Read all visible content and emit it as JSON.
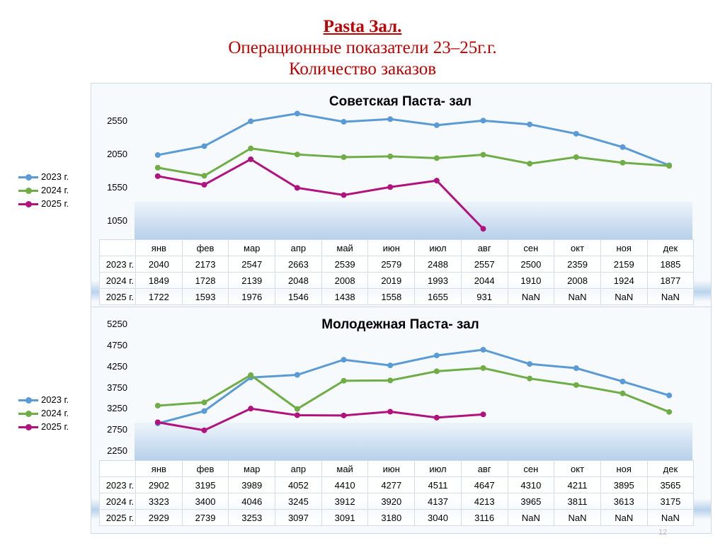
{
  "header": {
    "title": "Pasta Зал.",
    "subtitle": "Операционные показатели  23–25г.г.",
    "metric": "Количество заказов"
  },
  "page_number": "12",
  "colors": {
    "2023 г.": "#5b9bd5",
    "2024 г.": "#70ad47",
    "2025 г.": "#b0127e"
  },
  "chart_data": [
    {
      "type": "line",
      "title": "Советская Паста- зал",
      "categories": [
        "янв",
        "фев",
        "мар",
        "апр",
        "май",
        "июн",
        "июл",
        "авг",
        "сен",
        "окт",
        "ноя",
        "дек"
      ],
      "y_ticks": [
        "2550",
        "2050",
        "1550",
        "1050"
      ],
      "legend": "left",
      "ylim": [
        780,
        2780
      ],
      "series": [
        {
          "name": "2023 г.",
          "values": [
            2040,
            2173,
            2547,
            2663,
            2539,
            2579,
            2488,
            2557,
            2500,
            2359,
            2159,
            1885
          ],
          "labels": [
            "2040",
            "2173",
            "2547",
            "2663",
            "2539",
            "2579",
            "2488",
            "2557",
            "2500",
            "2359",
            "2159",
            "1885"
          ]
        },
        {
          "name": "2024 г.",
          "values": [
            1849,
            1728,
            2139,
            2048,
            2008,
            2019,
            1993,
            2044,
            1910,
            2008,
            1924,
            1877
          ],
          "labels": [
            "1849",
            "1728",
            "2139",
            "2048",
            "2008",
            "2019",
            "1993",
            "2044",
            "1910",
            "2008",
            "1924",
            "1877"
          ]
        },
        {
          "name": "2025 г.",
          "values": [
            1722,
            1593,
            1976,
            1546,
            1438,
            1558,
            1655,
            931,
            null,
            null,
            null,
            null
          ],
          "labels": [
            "1722",
            "1593",
            "1976",
            "1546",
            "1438",
            "1558",
            "1655",
            "931",
            "NaN",
            "NaN",
            "NaN",
            "NaN"
          ]
        }
      ]
    },
    {
      "type": "line",
      "title": "Молодежная Паста- зал",
      "categories": [
        "янв",
        "фев",
        "мар",
        "апр",
        "май",
        "июн",
        "июл",
        "авг",
        "сен",
        "окт",
        "ноя",
        "дек"
      ],
      "y_ticks": [
        "5250",
        "4750",
        "4250",
        "3750",
        "3250",
        "2750",
        "2250"
      ],
      "legend": "left",
      "ylim": [
        1970,
        5250
      ],
      "series": [
        {
          "name": "2023 г.",
          "values": [
            2902,
            3195,
            3989,
            4052,
            4410,
            4277,
            4511,
            4647,
            4310,
            4211,
            3895,
            3565
          ],
          "labels": [
            "2902",
            "3195",
            "3989",
            "4052",
            "4410",
            "4277",
            "4511",
            "4647",
            "4310",
            "4211",
            "3895",
            "3565"
          ]
        },
        {
          "name": "2024 г.",
          "values": [
            3323,
            3400,
            4046,
            3245,
            3912,
            3920,
            4137,
            4213,
            3965,
            3811,
            3613,
            3175
          ],
          "labels": [
            "3323",
            "3400",
            "4046",
            "3245",
            "3912",
            "3920",
            "4137",
            "4213",
            "3965",
            "3811",
            "3613",
            "3175"
          ]
        },
        {
          "name": "2025 г.",
          "values": [
            2929,
            2739,
            3253,
            3097,
            3091,
            3180,
            3040,
            3116,
            null,
            null,
            null,
            null
          ],
          "labels": [
            "2929",
            "2739",
            "3253",
            "3097",
            "3091",
            "3180",
            "3040",
            "3116",
            "NaN",
            "NaN",
            "NaN",
            "NaN"
          ]
        }
      ]
    }
  ]
}
